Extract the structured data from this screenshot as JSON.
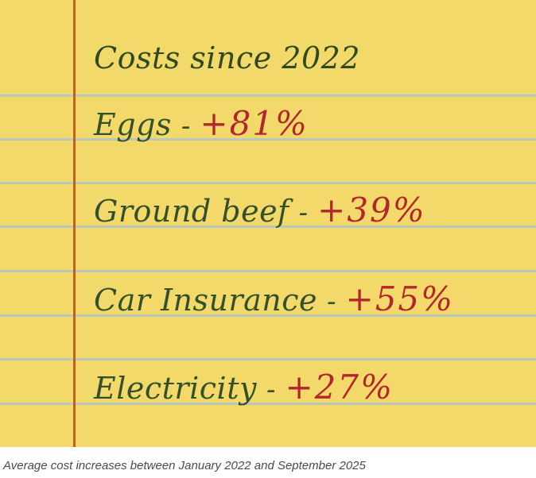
{
  "note": {
    "title": "Costs since 2022",
    "items": [
      {
        "label": "Eggs",
        "separator": "-",
        "change": "+81%"
      },
      {
        "label": "Ground beef",
        "separator": "-",
        "change": "+39%"
      },
      {
        "label": "Car Insurance",
        "separator": "-",
        "change": "+55%"
      },
      {
        "label": "Electricity",
        "separator": "-",
        "change": "+27%"
      }
    ]
  },
  "caption": "Average cost increases between January 2022 and September 2025",
  "colors": {
    "paper": "#f2d96a",
    "rule_lines": "#b9c7bf",
    "margin_line": "#c1601f",
    "ink_text": "#34502a",
    "ink_percent": "#b3262d",
    "caption_text": "#4a4a4a"
  }
}
